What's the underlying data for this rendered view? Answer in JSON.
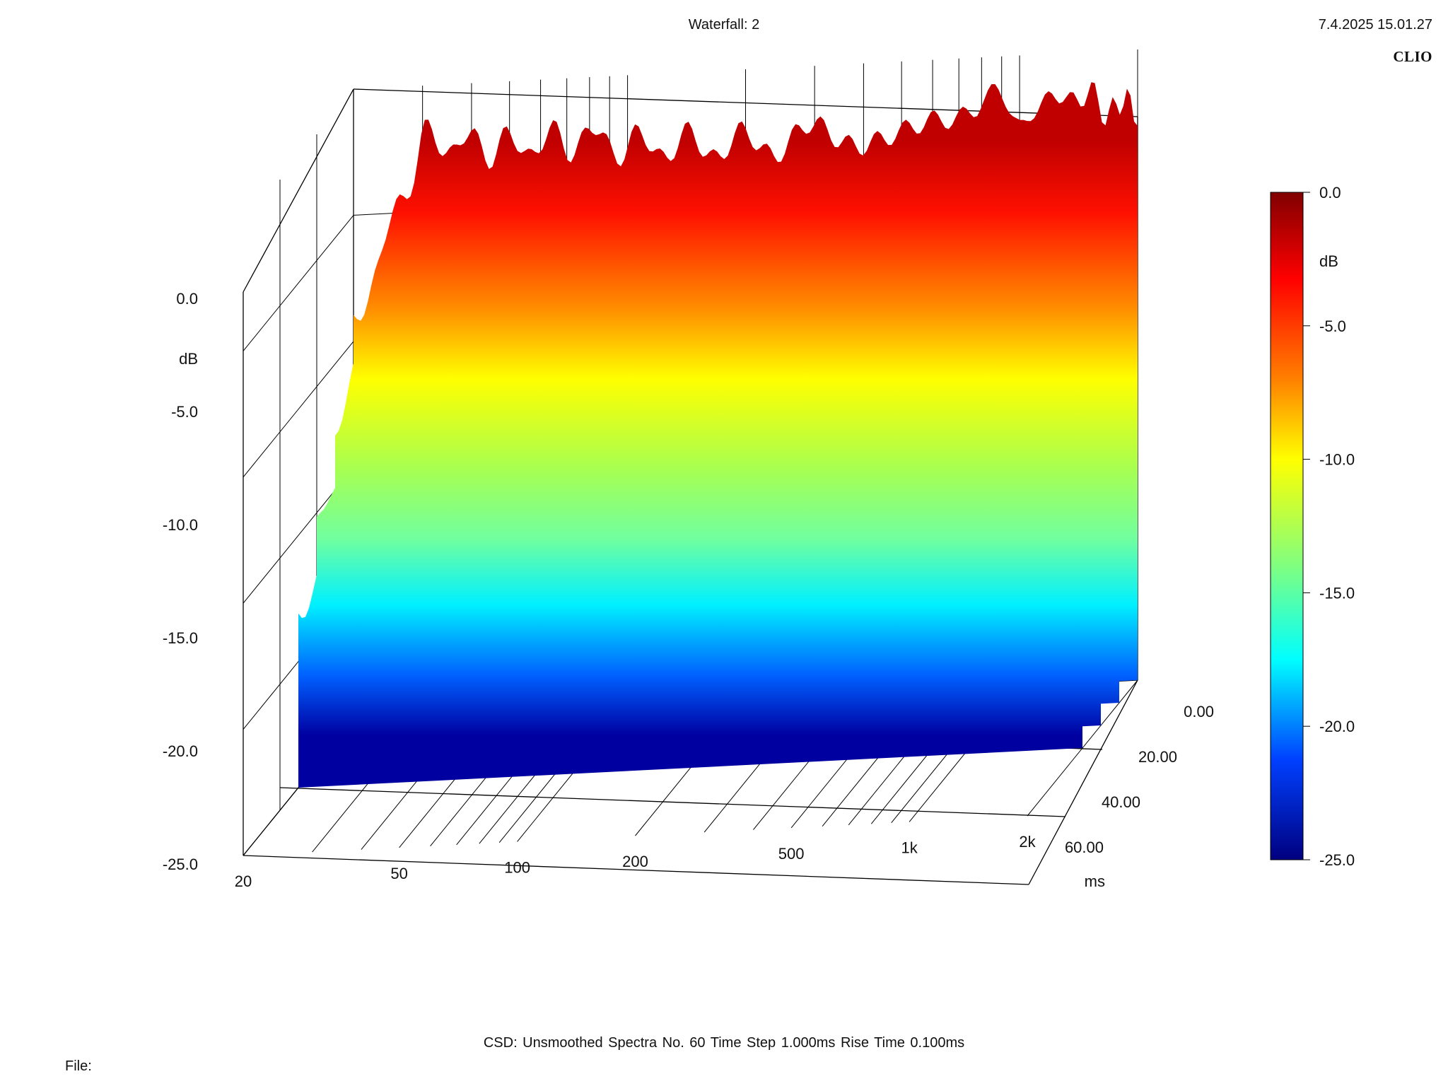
{
  "header": {
    "title": "Waterfall: 2",
    "datetime": "7.4.2025 15.01.27",
    "brand": "CLIO"
  },
  "footer": {
    "csd_label": "CSD:   Unsmoothed   Spectra No. 60   Time Step 1.000ms   Rise Time 0.100ms",
    "file_label": "File:"
  },
  "colors": {
    "scale_top": "#800000",
    "scale_red": "#ff0000",
    "scale_orange": "#ff8000",
    "scale_yellow": "#ffff00",
    "scale_green": "#80ff80",
    "scale_cyan": "#00ffff",
    "scale_blue": "#0040ff",
    "scale_bottom": "#00007f",
    "axis_lines": "#000000"
  },
  "chart_data": {
    "type": "area",
    "chart_style": "3D waterfall (cumulative spectral decay)",
    "x_axis": {
      "unit_label": "",
      "scale": "log",
      "range": [
        20,
        2000
      ],
      "tick_values": [
        20,
        50,
        100,
        200,
        500,
        1000,
        2000
      ],
      "tick_labels": [
        "20",
        "50",
        "100",
        "200",
        "500",
        "1k",
        "2k"
      ]
    },
    "y_axis": {
      "unit_label": "dB",
      "range": [
        -25,
        0
      ],
      "tick_labels": [
        "0.0",
        "-5.0",
        "-10.0",
        "-15.0",
        "-20.0",
        "-25.0"
      ]
    },
    "z_axis": {
      "unit_label": "ms",
      "range": [
        0,
        60
      ],
      "tick_labels": [
        "0.00",
        "20.00",
        "40.00",
        "60.00"
      ]
    },
    "color_scale": {
      "unit_label": "dB",
      "range": [
        -25,
        0
      ],
      "tick_labels": [
        "0.0",
        "-5.0",
        "-10.0",
        "-15.0",
        "-20.0",
        "-25.0"
      ]
    },
    "series": [
      {
        "time_ms": 0,
        "freq_hz": [
          20,
          30,
          50,
          80,
          100,
          200,
          500,
          800,
          1000,
          1300,
          2000
        ],
        "db": [
          -9.5,
          -2.2,
          -2.6,
          -2.4,
          -2.8,
          -3.0,
          -2.6,
          -1.5,
          -2.5,
          -1.6,
          -2.5
        ]
      },
      {
        "time_ms": 10,
        "freq_hz": [
          20,
          30,
          50,
          80,
          100,
          200,
          500,
          800,
          1000,
          1300,
          2000
        ],
        "db": [
          -12.5,
          -5.5,
          -6.5,
          -8.0,
          -9.0,
          -10.5,
          -12.5,
          -10.5,
          -12.0,
          -11.0,
          -9.0
        ]
      },
      {
        "time_ms": 20,
        "freq_hz": [
          20,
          30,
          50,
          80,
          100,
          200,
          500,
          800,
          1000,
          1300,
          2000
        ],
        "db": [
          -15.5,
          -10.0,
          -11.0,
          -13.0,
          -14.0,
          -16.0,
          -17.0,
          -15.0,
          -16.0,
          -15.0,
          -14.0
        ]
      },
      {
        "time_ms": 30,
        "freq_hz": [
          20,
          30,
          50,
          80,
          100,
          200,
          500,
          800,
          1000,
          1300,
          2000
        ],
        "db": [
          -18.0,
          -14.0,
          -15.0,
          -16.5,
          -17.5,
          -19.0,
          -20.0,
          -19.0,
          -19.5,
          -19.0,
          -18.0
        ]
      }
    ]
  }
}
